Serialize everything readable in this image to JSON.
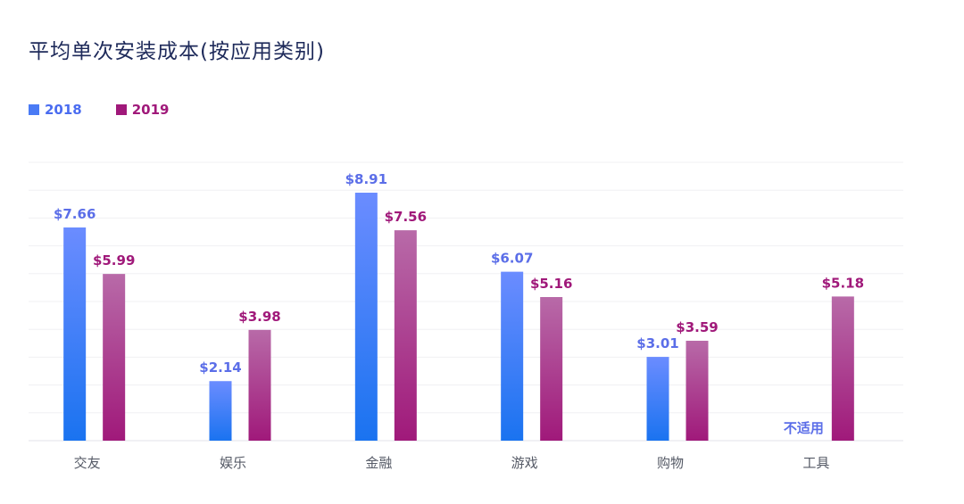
{
  "chart_data": {
    "type": "bar",
    "title": "平均单次安装成本(按应用类别)",
    "categories": [
      "交友",
      "娱乐",
      "金融",
      "游戏",
      "购物",
      "工具"
    ],
    "series": [
      {
        "name": "2018",
        "values": [
          7.66,
          2.14,
          8.91,
          6.07,
          3.01,
          null
        ],
        "labels": [
          "$7.66",
          "$2.14",
          "$8.91",
          "$6.07",
          "$3.01",
          "不适用"
        ],
        "color_top": "#6b8cff",
        "color_bottom": "#1a73f0",
        "label_color": "#5b6ee8"
      },
      {
        "name": "2019",
        "values": [
          5.99,
          3.98,
          7.56,
          5.16,
          3.59,
          5.18
        ],
        "labels": [
          "$5.99",
          "$3.98",
          "$7.56",
          "$5.16",
          "$3.59",
          "$5.18"
        ],
        "color_top": "#b86aa8",
        "color_bottom": "#a0197a",
        "label_color": "#a0197a"
      }
    ],
    "ylim": [
      0,
      10
    ],
    "grid": true,
    "legend_position": "top-left"
  }
}
